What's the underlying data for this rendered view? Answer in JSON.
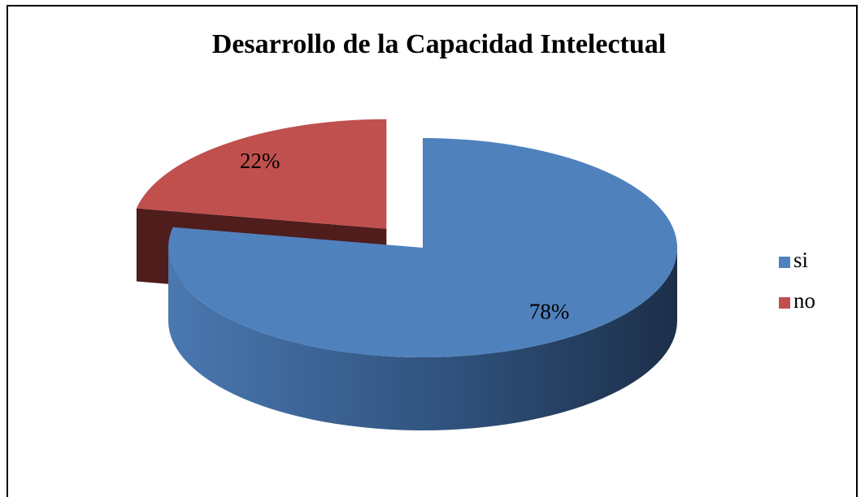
{
  "chart_data": {
    "type": "pie",
    "title": "Desarrollo de la Capacidad Intelectual",
    "categories": [
      "si",
      "no"
    ],
    "values": [
      78,
      22
    ],
    "value_labels": [
      "78%",
      "22%"
    ],
    "colors": [
      "#4f81bd",
      "#c0504d"
    ],
    "legend": "right"
  }
}
